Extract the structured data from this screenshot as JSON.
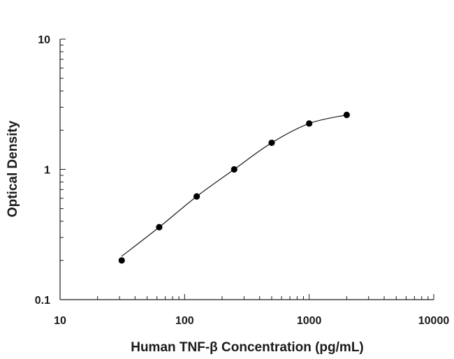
{
  "chart_data": {
    "type": "scatter",
    "title": "",
    "xlabel": "Human TNF-β Concentration (pg/mL)",
    "ylabel": "Optical Density",
    "x_scale": "log",
    "y_scale": "log",
    "xlim": [
      10,
      10000
    ],
    "ylim": [
      0.1,
      10
    ],
    "x_ticks": [
      10,
      100,
      1000,
      10000
    ],
    "x_tick_labels": [
      "10",
      "100",
      "1000",
      "10000"
    ],
    "y_ticks": [
      0.1,
      1,
      10
    ],
    "y_tick_labels": [
      "0.1",
      "1",
      "10"
    ],
    "grid": false,
    "legend": "none",
    "series": [
      {
        "x": [
          31.25,
          62.5,
          125,
          250,
          500,
          1000,
          2000
        ],
        "y": [
          0.2,
          0.36,
          0.62,
          1.0,
          1.6,
          2.25,
          2.62
        ]
      }
    ],
    "fit_curve": true
  }
}
